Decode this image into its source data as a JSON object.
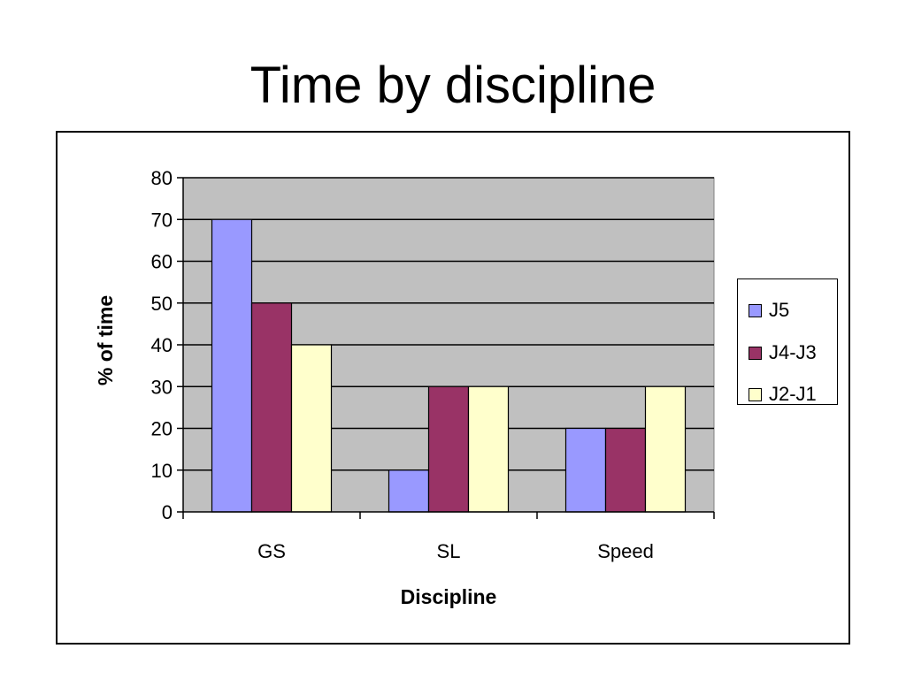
{
  "slide": {
    "title": "Time by discipline"
  },
  "chart_data": {
    "type": "bar",
    "title": "",
    "categories": [
      "GS",
      "SL",
      "Speed"
    ],
    "series": [
      {
        "name": "J5",
        "values": [
          70,
          10,
          20
        ],
        "color": "#9999ff"
      },
      {
        "name": "J4-J3",
        "values": [
          50,
          30,
          20
        ],
        "color": "#993366"
      },
      {
        "name": "J2-J1",
        "values": [
          40,
          30,
          30
        ],
        "color": "#ffffcc"
      }
    ],
    "xlabel": "Discipline",
    "ylabel": "% of time",
    "ylim": [
      0,
      80
    ],
    "yticks": [
      0,
      10,
      20,
      30,
      40,
      50,
      60,
      70,
      80
    ],
    "grid": true,
    "plot_background": "#c0c0c0",
    "legend_position": "right"
  }
}
